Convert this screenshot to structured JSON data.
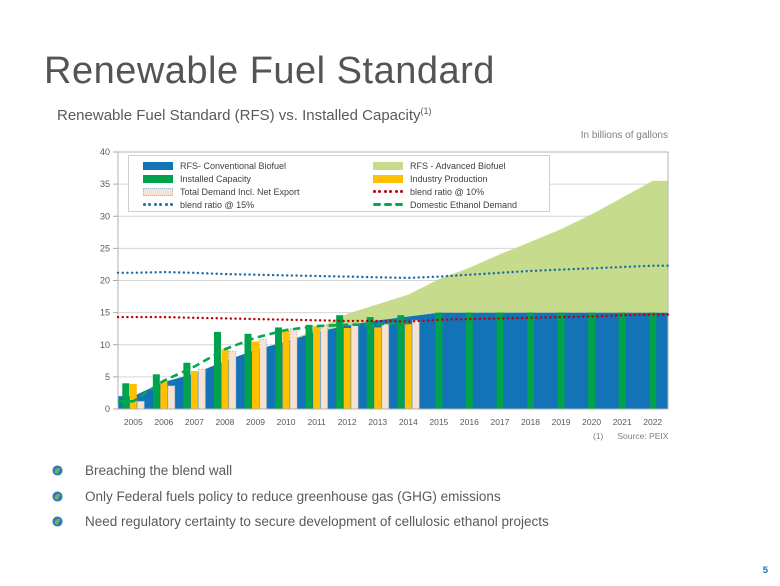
{
  "slide": {
    "title": "Renewable Fuel Standard",
    "subtitle": "Renewable Fuel Standard (RFS) vs. Installed Capacity",
    "subtitle_superscript": "(1)",
    "units_label": "In billions of gallons",
    "footnote_marker": "(1)",
    "footnote_text": "Source: PEIX",
    "page_number": "5",
    "bullets": [
      "Breaching the blend wall",
      "Only Federal fuels policy to reduce greenhouse gas (GHG) emissions",
      "Need regulatory certainty to secure development of cellulosic ethanol projects"
    ],
    "bullet_icon_colors": {
      "globe_blue": "#2E79BE",
      "leaf_green": "#7CB342"
    }
  },
  "chart_data": {
    "type": "combo: stacked area + grouped bar + dotted/dashed lines",
    "title": "Renewable Fuel Standard (RFS) vs. Installed Capacity",
    "units": "In billions of gallons",
    "categories": [
      2005,
      2006,
      2007,
      2008,
      2009,
      2010,
      2011,
      2012,
      2013,
      2014,
      2015,
      2016,
      2017,
      2018,
      2019,
      2020,
      2021,
      2022
    ],
    "ylim": [
      0,
      40
    ],
    "ytick_step": 5,
    "grid": true,
    "legend_position": "top-inside",
    "colors": {
      "grid": "#d6d6d6",
      "plot_border": "#b3b3b3",
      "axis_text": "#595959"
    },
    "series": [
      {
        "name": "RFS- Conventional Biofuel",
        "type": "area",
        "stack": "base",
        "color": "#1273B7",
        "values": [
          2.0,
          4.2,
          5.5,
          7.5,
          9.2,
          10.5,
          12.0,
          13.0,
          13.8,
          14.4,
          15.0,
          15.0,
          15.0,
          15.0,
          15.0,
          15.0,
          15.0,
          15.0
        ]
      },
      {
        "name": "RFS - Advanced Biofuel",
        "type": "area",
        "stack": "on-top",
        "color": "#C7DB8C",
        "values": [
          0,
          0,
          0,
          0,
          0,
          0,
          0.4,
          1.8,
          2.5,
          3.4,
          5.2,
          7.0,
          9.1,
          11.0,
          13.0,
          15.3,
          17.9,
          20.5
        ]
      },
      {
        "name": "Installed Capacity",
        "type": "bar",
        "color": "#00A24C",
        "values": [
          4.0,
          5.4,
          7.2,
          12.0,
          11.7,
          12.7,
          13.1,
          14.6,
          14.3,
          14.6,
          15.0,
          15.0,
          15.0,
          15.0,
          15.0,
          15.0,
          15.0,
          15.0
        ]
      },
      {
        "name": "Industry Production",
        "type": "bar",
        "color": "#FFC000",
        "values": [
          3.9,
          4.4,
          5.9,
          9.3,
          10.5,
          12.3,
          12.9,
          12.6,
          12.7,
          13.2,
          null,
          null,
          null,
          null,
          null,
          null,
          null,
          null
        ]
      },
      {
        "name": "Total Demand Incl. Net Export",
        "type": "bar",
        "color": "#F7E2D1",
        "border_color": "#93B9DC",
        "border_style": "dotted",
        "values": [
          1.2,
          3.6,
          6.2,
          9.0,
          10.8,
          12.5,
          13.0,
          13.0,
          13.2,
          13.8,
          null,
          null,
          null,
          null,
          null,
          null,
          null,
          null
        ]
      },
      {
        "name": "Domestic Ethanol Demand",
        "type": "line",
        "style": "dashed",
        "color": "#00A94F",
        "values": [
          1.2,
          4.4,
          6.6,
          9.3,
          11.1,
          12.3,
          12.9,
          13.1,
          13.2,
          13.4,
          null,
          null,
          null,
          null,
          null,
          null,
          null,
          null
        ]
      },
      {
        "name": "blend ratio @ 10%",
        "type": "line",
        "style": "dotted",
        "color": "#C00000",
        "values": [
          14.3,
          14.3,
          14.2,
          14.1,
          14.0,
          13.9,
          13.8,
          13.7,
          13.7,
          13.6,
          13.9,
          14.0,
          14.1,
          14.2,
          14.3,
          14.4,
          14.6,
          14.7
        ]
      },
      {
        "name": "blend ratio @ 15%",
        "type": "line",
        "style": "dotted",
        "color": "#1B6CA8",
        "values": [
          21.2,
          21.3,
          21.2,
          21.0,
          20.9,
          20.8,
          20.7,
          20.6,
          20.5,
          20.4,
          20.6,
          20.9,
          21.2,
          21.5,
          21.7,
          21.9,
          22.1,
          22.3
        ]
      }
    ],
    "legend": [
      {
        "label": "RFS- Conventional Biofuel",
        "swatch": "bar",
        "color": "#1273B7",
        "col": 0
      },
      {
        "label": "Installed Capacity",
        "swatch": "bar",
        "color": "#00A24C",
        "col": 0
      },
      {
        "label": "Total Demand Incl. Net Export",
        "swatch": "hatch",
        "color": "#F7E2D1",
        "border": "#93B9DC",
        "col": 0
      },
      {
        "label": "blend ratio @ 15%",
        "swatch": "dots",
        "color": "#1B6CA8",
        "col": 0
      },
      {
        "label": "RFS - Advanced Biofuel",
        "swatch": "bar",
        "color": "#C7DB8C",
        "col": 1
      },
      {
        "label": "Industry Production",
        "swatch": "bar",
        "color": "#FFC000",
        "col": 1
      },
      {
        "label": "blend ratio @ 10%",
        "swatch": "dots",
        "color": "#C00000",
        "col": 1
      },
      {
        "label": "Domestic Ethanol Demand",
        "swatch": "dashes",
        "color": "#00A94F",
        "col": 1
      }
    ]
  }
}
